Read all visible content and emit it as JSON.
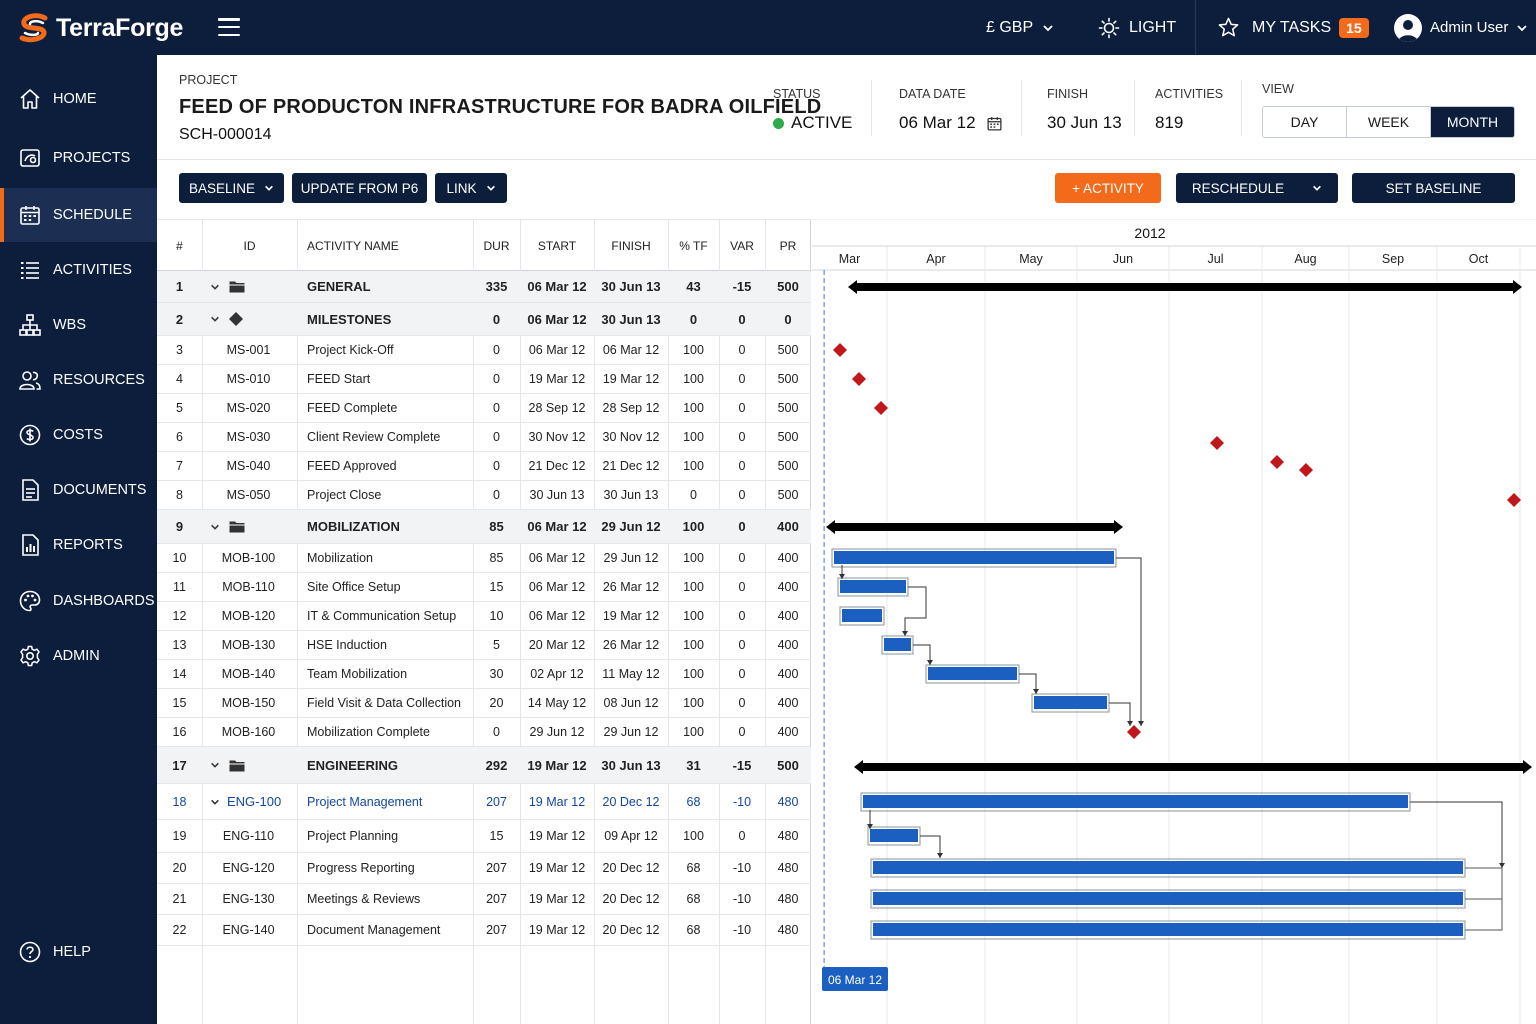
{
  "app": {
    "name": "TerraForge"
  },
  "topbar": {
    "currency": "£ GBP",
    "theme": "LIGHT",
    "tasks_label": "MY TASKS",
    "tasks_count": "15",
    "user": "Admin User"
  },
  "sidebar": {
    "items": [
      {
        "label": "HOME",
        "icon": "home-icon"
      },
      {
        "label": "PROJECTS",
        "icon": "projects-icon"
      },
      {
        "label": "SCHEDULE",
        "icon": "calendar-icon",
        "active": true
      },
      {
        "label": "ACTIVITIES",
        "icon": "list-icon"
      },
      {
        "label": "WBS",
        "icon": "hierarchy-icon"
      },
      {
        "label": "RESOURCES",
        "icon": "users-icon"
      },
      {
        "label": "COSTS",
        "icon": "dollar-icon"
      },
      {
        "label": "DOCUMENTS",
        "icon": "document-icon"
      },
      {
        "label": "REPORTS",
        "icon": "chart-icon"
      },
      {
        "label": "DASHBOARDS",
        "icon": "palette-icon"
      },
      {
        "label": "ADMIN",
        "icon": "gear-icon"
      }
    ],
    "help": "HELP"
  },
  "header": {
    "project_label": "PROJECT",
    "project_title": "FEED OF PRODUCTON INFRASTRUCTURE FOR BADRA OILFIELD",
    "project_code": "SCH-000014",
    "status_label": "STATUS",
    "status_value": "ACTIVE",
    "status_color": "#2eaa4a",
    "data_date_label": "DATA DATE",
    "data_date_value": "06 Mar 12",
    "finish_label": "FINISH",
    "finish_value": "30 Jun 13",
    "activities_label": "ACTIVITIES",
    "activities_value": "819",
    "view_label": "VIEW",
    "view_options": [
      "DAY",
      "WEEK",
      "MONTH"
    ],
    "view_selected": "MONTH"
  },
  "toolbar": {
    "baseline": "BASELINE",
    "update": "UPDATE FROM P6",
    "link": "LINK",
    "add_activity": "+ ACTIVITY",
    "reschedule": "RESCHEDULE",
    "set_baseline": "SET BASELINE"
  },
  "table": {
    "columns": [
      "#",
      "ID",
      "ACTIVITY NAME",
      "DUR",
      "START",
      "FINISH",
      "% TF",
      "VAR",
      "PR"
    ],
    "rows": [
      {
        "n": "1",
        "id": "",
        "name": "GENERAL",
        "dur": "335",
        "start": "06 Mar 12",
        "finish": "30 Jun 13",
        "tf": "43",
        "var": "-15",
        "pr": "500",
        "type": "group",
        "icon": "folder"
      },
      {
        "n": "2",
        "id": "",
        "name": "MILESTONES",
        "dur": "0",
        "start": "06 Mar 12",
        "finish": "30 Jun 13",
        "tf": "0",
        "var": "0",
        "pr": "0",
        "type": "group",
        "icon": "diamond"
      },
      {
        "n": "3",
        "id": "MS-001",
        "name": "Project Kick-Off",
        "dur": "0",
        "start": "06 Mar 12",
        "finish": "06 Mar 12",
        "tf": "100",
        "var": "0",
        "pr": "500",
        "type": "task"
      },
      {
        "n": "4",
        "id": "MS-010",
        "name": "FEED Start",
        "dur": "0",
        "start": "19 Mar 12",
        "finish": "19 Mar 12",
        "tf": "100",
        "var": "0",
        "pr": "500",
        "type": "task"
      },
      {
        "n": "5",
        "id": "MS-020",
        "name": "FEED Complete",
        "dur": "0",
        "start": "28 Sep 12",
        "finish": "28 Sep 12",
        "tf": "100",
        "var": "0",
        "pr": "500",
        "type": "task"
      },
      {
        "n": "6",
        "id": "MS-030",
        "name": "Client Review Complete",
        "dur": "0",
        "start": "30 Nov 12",
        "finish": "30 Nov 12",
        "tf": "100",
        "var": "0",
        "pr": "500",
        "type": "task"
      },
      {
        "n": "7",
        "id": "MS-040",
        "name": "FEED Approved",
        "dur": "0",
        "start": "21 Dec 12",
        "finish": "21 Dec 12",
        "tf": "100",
        "var": "0",
        "pr": "500",
        "type": "task"
      },
      {
        "n": "8",
        "id": "MS-050",
        "name": "Project Close",
        "dur": "0",
        "start": "30 Jun 13",
        "finish": "30 Jun 13",
        "tf": "0",
        "var": "0",
        "pr": "500",
        "type": "task"
      },
      {
        "n": "9",
        "id": "",
        "name": "MOBILIZATION",
        "dur": "85",
        "start": "06 Mar 12",
        "finish": "29 Jun 12",
        "tf": "100",
        "var": "0",
        "pr": "400",
        "type": "group",
        "icon": "folder"
      },
      {
        "n": "10",
        "id": "MOB-100",
        "name": "Mobilization",
        "dur": "85",
        "start": "06 Mar 12",
        "finish": "29 Jun 12",
        "tf": "100",
        "var": "0",
        "pr": "400",
        "type": "task"
      },
      {
        "n": "11",
        "id": "MOB-110",
        "name": "Site Office Setup",
        "dur": "15",
        "start": "06 Mar 12",
        "finish": "26 Mar 12",
        "tf": "100",
        "var": "0",
        "pr": "400",
        "type": "task"
      },
      {
        "n": "12",
        "id": "MOB-120",
        "name": "IT & Communication Setup",
        "dur": "10",
        "start": "06 Mar 12",
        "finish": "19 Mar 12",
        "tf": "100",
        "var": "0",
        "pr": "400",
        "type": "task"
      },
      {
        "n": "13",
        "id": "MOB-130",
        "name": "HSE Induction",
        "dur": "5",
        "start": "20 Mar 12",
        "finish": "26 Mar 12",
        "tf": "100",
        "var": "0",
        "pr": "400",
        "type": "task"
      },
      {
        "n": "14",
        "id": "MOB-140",
        "name": "Team Mobilization",
        "dur": "30",
        "start": "02 Apr 12",
        "finish": "11 May 12",
        "tf": "100",
        "var": "0",
        "pr": "400",
        "type": "task"
      },
      {
        "n": "15",
        "id": "MOB-150",
        "name": "Field Visit & Data Collection",
        "dur": "20",
        "start": "14 May 12",
        "finish": "08 Jun 12",
        "tf": "100",
        "var": "0",
        "pr": "400",
        "type": "task"
      },
      {
        "n": "16",
        "id": "MOB-160",
        "name": "Mobilization Complete",
        "dur": "0",
        "start": "29 Jun 12",
        "finish": "29 Jun 12",
        "tf": "100",
        "var": "0",
        "pr": "400",
        "type": "task"
      },
      {
        "n": "17",
        "id": "",
        "name": "ENGINEERING",
        "dur": "292",
        "start": "19 Mar 12",
        "finish": "30 Jun 13",
        "tf": "31",
        "var": "-15",
        "pr": "500",
        "type": "group",
        "icon": "folder"
      },
      {
        "n": "18",
        "id": "ENG-100",
        "name": "Project Management",
        "dur": "207",
        "start": "19 Mar 12",
        "finish": "20 Dec 12",
        "tf": "68",
        "var": "-10",
        "pr": "480",
        "type": "subgroup"
      },
      {
        "n": "19",
        "id": "ENG-110",
        "name": "Project Planning",
        "dur": "15",
        "start": "19 Mar 12",
        "finish": "09 Apr 12",
        "tf": "100",
        "var": "0",
        "pr": "480",
        "type": "task"
      },
      {
        "n": "20",
        "id": "ENG-120",
        "name": "Progress Reporting",
        "dur": "207",
        "start": "19 Mar 12",
        "finish": "20 Dec 12",
        "tf": "68",
        "var": "-10",
        "pr": "480",
        "type": "task"
      },
      {
        "n": "21",
        "id": "ENG-130",
        "name": "Meetings & Reviews",
        "dur": "207",
        "start": "19 Mar 12",
        "finish": "20 Dec 12",
        "tf": "68",
        "var": "-10",
        "pr": "480",
        "type": "task"
      },
      {
        "n": "22",
        "id": "ENG-140",
        "name": "Document Management",
        "dur": "207",
        "start": "19 Mar 12",
        "finish": "20 Dec 12",
        "tf": "68",
        "var": "-10",
        "pr": "480",
        "type": "task"
      }
    ]
  },
  "gantt": {
    "year": "2012",
    "months": [
      "Mar",
      "Apr",
      "May",
      "Jun",
      "Jul",
      "Aug",
      "Sep",
      "Oct"
    ],
    "data_date_flag": "06 Mar 12",
    "bar_color": "#1b5fc1",
    "milestone_color": "#c0161c",
    "summary_color": "#000000"
  }
}
